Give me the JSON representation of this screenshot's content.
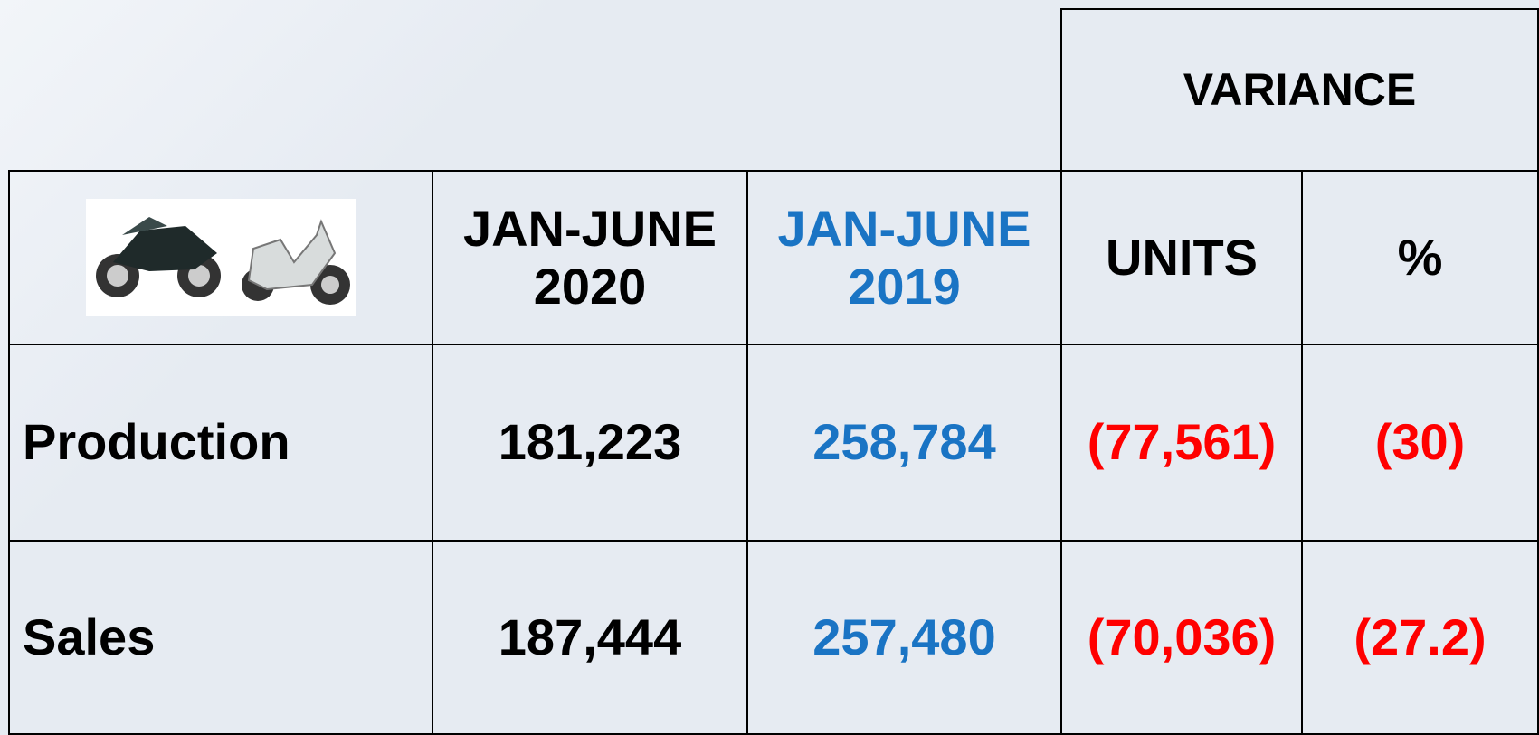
{
  "header": {
    "variance": "VARIANCE"
  },
  "columns": [
    "JAN-JUNE 2020",
    "JAN-JUNE 2019",
    "UNITS",
    "%"
  ],
  "table": {
    "rows": [
      [
        "Production",
        "181,223",
        "258,784",
        "(77,561)",
        "(30)"
      ],
      [
        "Sales",
        "187,444",
        "257,480",
        "(70,036)",
        "(27.2)"
      ]
    ]
  }
}
